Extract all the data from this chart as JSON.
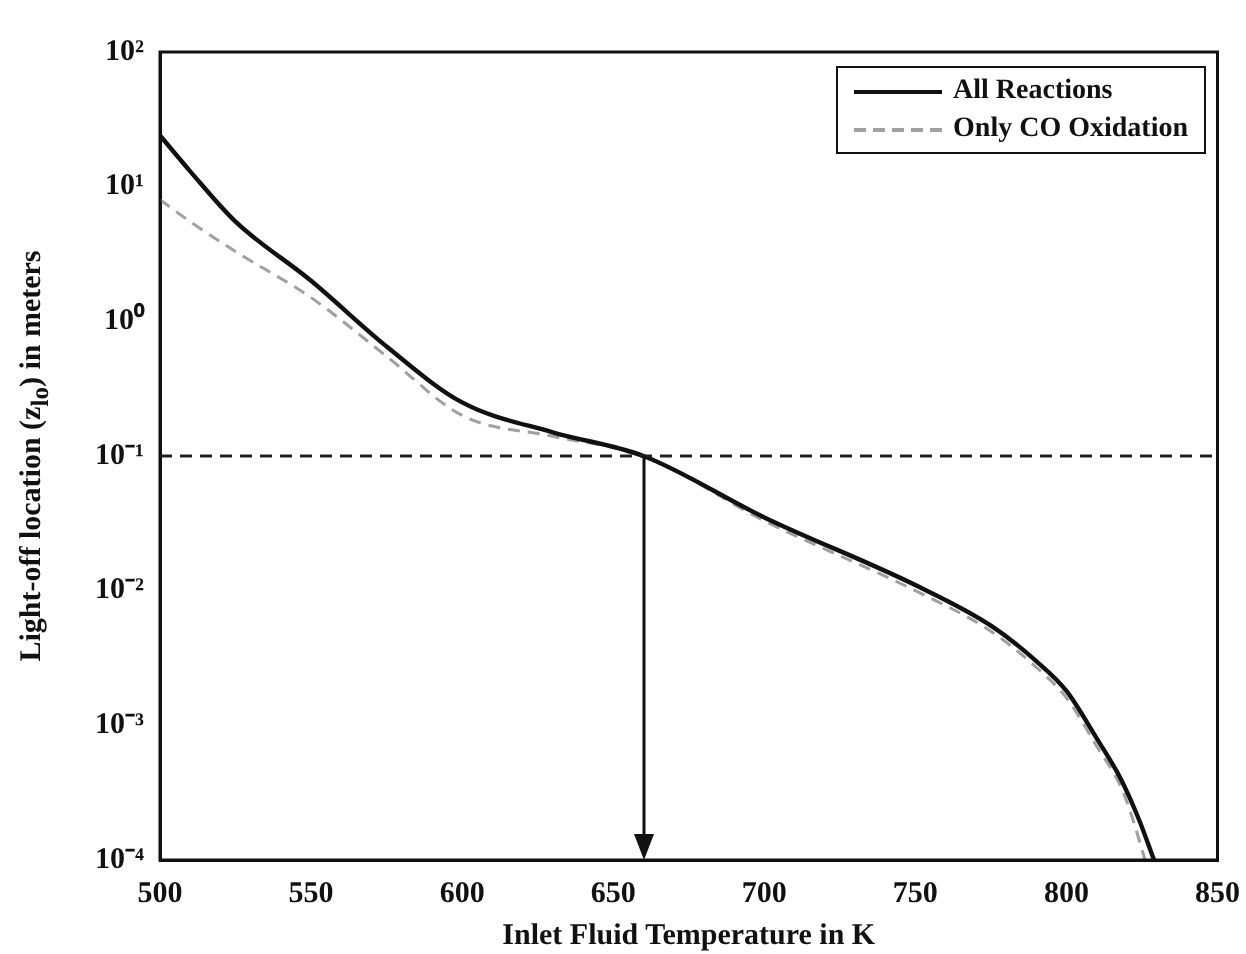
{
  "chart_data": {
    "type": "line",
    "xlabel": "Inlet Fluid Temperature in K",
    "ylabel": "Light-off location (z$_{lo}$) in meters",
    "log": "y",
    "grid": false,
    "legend": "top right",
    "marker": "none",
    "xlim": [
      500,
      850
    ],
    "xticks": [
      500,
      550,
      600,
      650,
      700,
      750,
      800,
      850
    ],
    "ylim": [
      0.0001,
      100
    ],
    "yticks": [
      {
        "value": 0.0001,
        "label": "10⁻⁴"
      },
      {
        "value": 0.001,
        "label": "10⁻³"
      },
      {
        "value": 0.01,
        "label": "10⁻²"
      },
      {
        "value": 0.1,
        "label": "10⁻¹"
      },
      {
        "value": 1,
        "label": "10⁰"
      },
      {
        "value": 10,
        "label": "10¹"
      },
      {
        "value": 100,
        "label": "10²"
      }
    ],
    "ref_lines": [
      {
        "axis": "y",
        "value": 0.1,
        "color": "#222222",
        "line_style": "dashed"
      },
      {
        "axis": "x",
        "value": 660,
        "color": "#111111",
        "line_style": "solid"
      }
    ],
    "series": [
      {
        "name": "All Reactions",
        "color": "#111111",
        "line_style": "solid",
        "x": [
          500,
          510,
          525,
          550,
          575,
          600,
          630,
          660,
          700,
          750,
          775,
          790,
          800,
          810,
          818,
          824,
          829
        ],
        "values": [
          24,
          13,
          5.5,
          2.0,
          0.65,
          0.25,
          0.15,
          0.1,
          0.035,
          0.011,
          0.0055,
          0.003,
          0.0018,
          0.0008,
          0.0004,
          0.0002,
          0.0001
        ]
      },
      {
        "name": "Only CO Oxidation",
        "color": "#a0a0a0",
        "line_style": "dashed",
        "x": [
          500,
          510,
          525,
          550,
          575,
          600,
          630,
          660,
          700,
          750,
          775,
          790,
          800,
          810,
          818,
          822,
          826
        ],
        "values": [
          8,
          5.5,
          3.3,
          1.5,
          0.55,
          0.2,
          0.14,
          0.1,
          0.033,
          0.01,
          0.005,
          0.0027,
          0.0016,
          0.0007,
          0.00035,
          0.0002,
          0.0001
        ]
      }
    ]
  }
}
